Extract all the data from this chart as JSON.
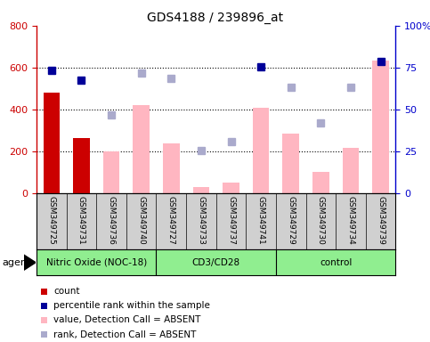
{
  "title": "GDS4188 / 239896_at",
  "samples": [
    "GSM349725",
    "GSM349731",
    "GSM349736",
    "GSM349740",
    "GSM349727",
    "GSM349733",
    "GSM349737",
    "GSM349741",
    "GSM349729",
    "GSM349730",
    "GSM349734",
    "GSM349739"
  ],
  "groups": [
    {
      "name": "Nitric Oxide (NOC-18)",
      "start": 0,
      "end": 4
    },
    {
      "name": "CD3/CD28",
      "start": 4,
      "end": 8
    },
    {
      "name": "control",
      "start": 8,
      "end": 12
    }
  ],
  "count_values": [
    480,
    265,
    null,
    null,
    null,
    null,
    null,
    null,
    null,
    null,
    null,
    null
  ],
  "value_absent": [
    null,
    null,
    200,
    420,
    238,
    30,
    50,
    410,
    285,
    100,
    215,
    635
  ],
  "rank_absent": [
    null,
    null,
    375,
    575,
    550,
    205,
    245,
    null,
    505,
    335,
    505,
    null
  ],
  "percentile_rank_left": [
    585,
    540,
    null,
    null,
    null,
    null,
    null,
    605,
    null,
    null,
    null,
    630
  ],
  "left_ylim": [
    0,
    800
  ],
  "right_ylim": [
    0,
    100
  ],
  "left_yticks": [
    0,
    200,
    400,
    600,
    800
  ],
  "right_yticks": [
    0,
    25,
    50,
    75,
    100
  ],
  "right_yticklabels": [
    "0",
    "25",
    "50",
    "75",
    "100%"
  ],
  "count_color": "#CC0000",
  "absent_value_color": "#FFB6C1",
  "absent_rank_color": "#AAAACC",
  "percentile_color": "#000099",
  "legend_labels": [
    "count",
    "percentile rank within the sample",
    "value, Detection Call = ABSENT",
    "rank, Detection Call = ABSENT"
  ],
  "legend_colors": [
    "#CC0000",
    "#000099",
    "#FFB6C1",
    "#AAAACC"
  ],
  "agent_label": "agent",
  "left_tick_color": "#CC0000",
  "right_tick_color": "#0000CC",
  "group_bg_color": "#90EE90",
  "sample_bg_color": "#D0D0D0"
}
